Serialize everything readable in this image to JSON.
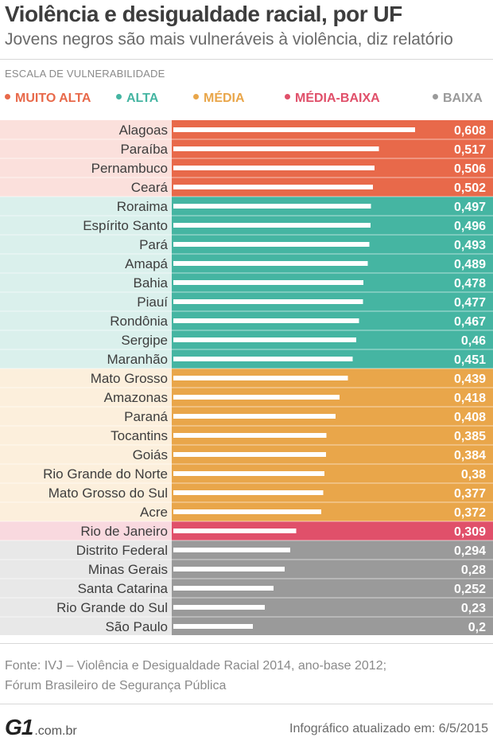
{
  "header": {
    "title": "Violência e desigualdade racial, por UF",
    "subtitle": "Jovens negros são mais vulneráveis à violência, diz relatório"
  },
  "legend": {
    "scale_title": "ESCALA DE VULNERABILIDADE",
    "items": [
      {
        "label": "MUITO ALTA",
        "color": "#e8694a"
      },
      {
        "label": "ALTA",
        "color": "#45b5a2"
      },
      {
        "label": "MÉDIA",
        "color": "#e9a64a"
      },
      {
        "label": "MÉDIA-BAIXA",
        "color": "#e0506a"
      },
      {
        "label": "BAIXA",
        "color": "#9a9a9a"
      }
    ]
  },
  "chart_data": {
    "type": "bar",
    "orientation": "horizontal",
    "categories": [
      "Alagoas",
      "Paraíba",
      "Pernambuco",
      "Ceará",
      "Roraima",
      "Espírito Santo",
      "Pará",
      "Amapá",
      "Bahia",
      "Piauí",
      "Rondônia",
      "Sergipe",
      "Maranhão",
      "Mato Grosso",
      "Amazonas",
      "Paraná",
      "Tocantins",
      "Goiás",
      "Rio Grande do Norte",
      "Mato Grosso do Sul",
      "Acre",
      "Rio de Janeiro",
      "Distrito Federal",
      "Minas Gerais",
      "Santa Catarina",
      "Rio Grande do Sul",
      "São Paulo"
    ],
    "values": [
      0.608,
      0.517,
      0.506,
      0.502,
      0.497,
      0.496,
      0.493,
      0.489,
      0.478,
      0.477,
      0.467,
      0.46,
      0.451,
      0.439,
      0.418,
      0.408,
      0.385,
      0.384,
      0.38,
      0.377,
      0.372,
      0.309,
      0.294,
      0.28,
      0.252,
      0.23,
      0.2
    ],
    "value_labels": [
      "0,608",
      "0,517",
      "0,506",
      "0,502",
      "0,497",
      "0,496",
      "0,493",
      "0,489",
      "0,478",
      "0,477",
      "0,467",
      "0,46",
      "0,451",
      "0,439",
      "0,418",
      "0,408",
      "0,385",
      "0,384",
      "0,38",
      "0,377",
      "0,372",
      "0,309",
      "0,294",
      "0,28",
      "0,252",
      "0,23",
      "0,2"
    ],
    "groups": [
      "MUITO ALTA",
      "MUITO ALTA",
      "MUITO ALTA",
      "MUITO ALTA",
      "ALTA",
      "ALTA",
      "ALTA",
      "ALTA",
      "ALTA",
      "ALTA",
      "ALTA",
      "ALTA",
      "ALTA",
      "MÉDIA",
      "MÉDIA",
      "MÉDIA",
      "MÉDIA",
      "MÉDIA",
      "MÉDIA",
      "MÉDIA",
      "MÉDIA",
      "MÉDIA-BAIXA",
      "BAIXA",
      "BAIXA",
      "BAIXA",
      "BAIXA",
      "BAIXA"
    ],
    "group_colors": {
      "MUITO ALTA": {
        "bar": "#e8694a",
        "row": "#fbe0dc"
      },
      "ALTA": {
        "bar": "#45b5a2",
        "row": "#daf0ec"
      },
      "MÉDIA": {
        "bar": "#e9a64a",
        "row": "#fcefdc"
      },
      "MÉDIA-BAIXA": {
        "bar": "#e0506a",
        "row": "#f9d9df"
      },
      "BAIXA": {
        "bar": "#9a9a9a",
        "row": "#e8e8e8"
      }
    },
    "xlim": [
      0,
      0.7
    ],
    "grid": false,
    "legend_position": "top"
  },
  "footer": {
    "source_line1": "Fonte: IVJ – Violência e Desigualdade Racial 2014, ano-base 2012;",
    "source_line2": "Fórum Brasileiro de Segurança Pública",
    "logo_text": "G1",
    "logo_domain": ".com.br",
    "updated": "Infográfico atualizado em: 6/5/2015"
  }
}
